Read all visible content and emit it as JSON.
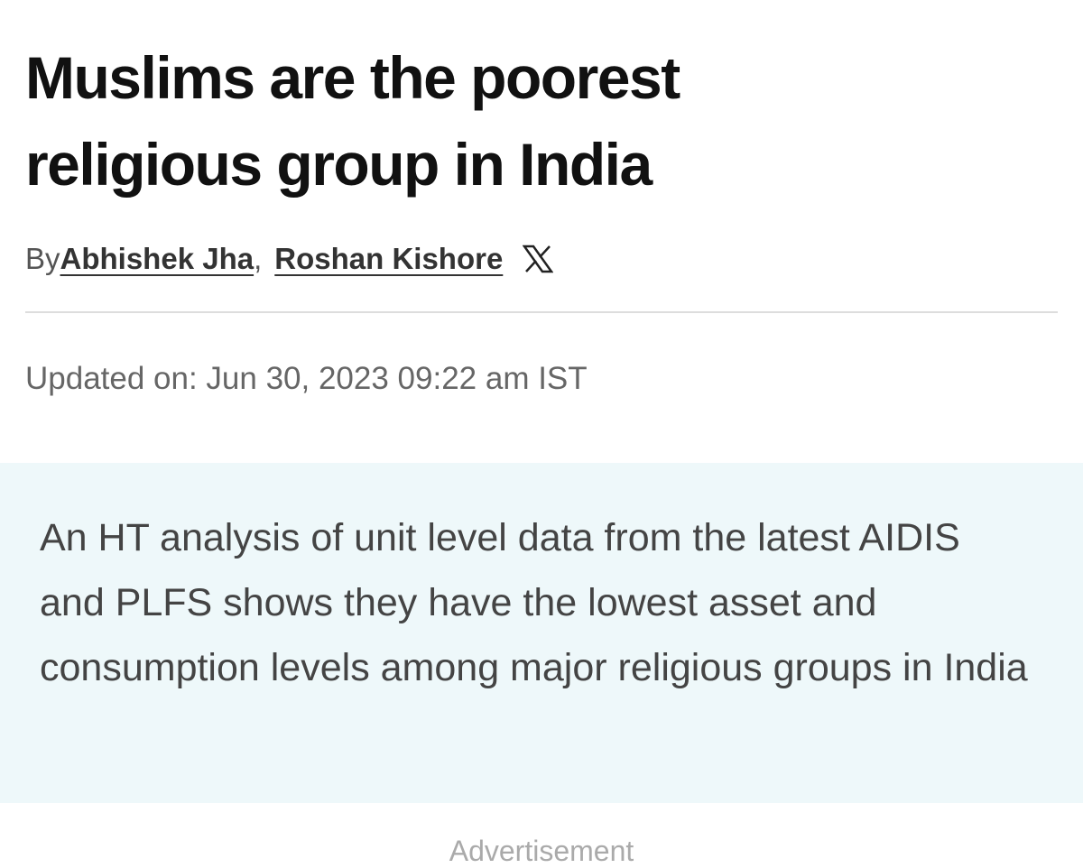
{
  "header": {
    "title": "Muslims are the poorest religious group in India"
  },
  "byline": {
    "prefix": "By",
    "authors": [
      "Abhishek Jha",
      "Roshan Kishore"
    ],
    "separator": ","
  },
  "updated": "Updated on: Jun 30, 2023 09:22 am IST",
  "summary": "An HT analysis of unit level data from the latest AIDIS and PLFS shows they have the lowest asset and consumption levels among major religious groups in India",
  "advertisement": "Advertisement"
}
